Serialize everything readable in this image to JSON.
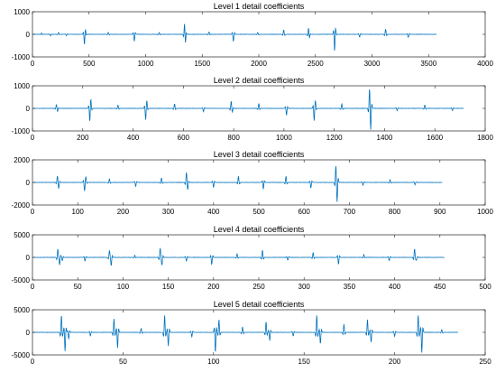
{
  "figure": {
    "background": "#ffffff",
    "line_color": "#0072bd",
    "axis_color": "#262626"
  },
  "chart_data": [
    {
      "type": "line",
      "title": "Level 1 detail coefficients",
      "xlim": [
        0,
        4000
      ],
      "ylim": [
        -1000,
        1000
      ],
      "xticks": [
        0,
        500,
        1000,
        1500,
        2000,
        2500,
        3000,
        3500,
        4000
      ],
      "yticks": [
        -1000,
        0,
        1000
      ],
      "x_end": 3570,
      "spikes": [
        {
          "x": 80,
          "v": 60
        },
        {
          "x": 160,
          "v": -70
        },
        {
          "x": 230,
          "v": 80
        },
        {
          "x": 300,
          "v": -60
        },
        {
          "x": 460,
          "v": -480
        },
        {
          "x": 465,
          "v": 200
        },
        {
          "x": 670,
          "v": 90
        },
        {
          "x": 900,
          "v": -300
        },
        {
          "x": 1120,
          "v": 80
        },
        {
          "x": 1345,
          "v": 500
        },
        {
          "x": 1350,
          "v": -380
        },
        {
          "x": 1560,
          "v": 100
        },
        {
          "x": 1775,
          "v": -320
        },
        {
          "x": 1990,
          "v": 80
        },
        {
          "x": 2220,
          "v": 200
        },
        {
          "x": 2440,
          "v": 300
        },
        {
          "x": 2445,
          "v": -150
        },
        {
          "x": 2670,
          "v": -780
        },
        {
          "x": 2675,
          "v": 200
        },
        {
          "x": 2890,
          "v": -120
        },
        {
          "x": 3120,
          "v": 230
        },
        {
          "x": 3320,
          "v": -130
        }
      ]
    },
    {
      "type": "line",
      "title": "Level 2 detail coefficients",
      "xlim": [
        0,
        1800
      ],
      "ylim": [
        -1000,
        1000
      ],
      "xticks": [
        0,
        200,
        400,
        600,
        800,
        1000,
        1200,
        1400,
        1600,
        1800
      ],
      "yticks": [
        -1000,
        0,
        1000
      ],
      "x_end": 1715,
      "spikes": [
        {
          "x": 95,
          "v": 150
        },
        {
          "x": 100,
          "v": -100
        },
        {
          "x": 228,
          "v": -500
        },
        {
          "x": 232,
          "v": 300
        },
        {
          "x": 340,
          "v": 150
        },
        {
          "x": 450,
          "v": -450
        },
        {
          "x": 455,
          "v": 250
        },
        {
          "x": 565,
          "v": 200
        },
        {
          "x": 680,
          "v": -150
        },
        {
          "x": 790,
          "v": 300
        },
        {
          "x": 795,
          "v": -100
        },
        {
          "x": 900,
          "v": 220
        },
        {
          "x": 1010,
          "v": -300
        },
        {
          "x": 1120,
          "v": -500
        },
        {
          "x": 1125,
          "v": 250
        },
        {
          "x": 1230,
          "v": 200
        },
        {
          "x": 1340,
          "v": 700
        },
        {
          "x": 1345,
          "v": -800
        },
        {
          "x": 1450,
          "v": -100
        },
        {
          "x": 1560,
          "v": 150
        },
        {
          "x": 1670,
          "v": -100
        }
      ]
    },
    {
      "type": "line",
      "title": "Level 3 detail coefficients",
      "xlim": [
        0,
        1000
      ],
      "ylim": [
        -2000,
        2000
      ],
      "xticks": [
        0,
        100,
        200,
        300,
        400,
        500,
        600,
        700,
        800,
        900,
        1000
      ],
      "yticks": [
        -2000,
        0,
        2000
      ],
      "x_end": 905,
      "spikes": [
        {
          "x": 55,
          "v": 500
        },
        {
          "x": 58,
          "v": -450
        },
        {
          "x": 115,
          "v": -700
        },
        {
          "x": 118,
          "v": 400
        },
        {
          "x": 170,
          "v": 300
        },
        {
          "x": 228,
          "v": -350
        },
        {
          "x": 285,
          "v": 400
        },
        {
          "x": 340,
          "v": 800
        },
        {
          "x": 343,
          "v": -500
        },
        {
          "x": 400,
          "v": -450
        },
        {
          "x": 455,
          "v": 550
        },
        {
          "x": 510,
          "v": -600
        },
        {
          "x": 560,
          "v": 550
        },
        {
          "x": 615,
          "v": -500
        },
        {
          "x": 670,
          "v": 1200
        },
        {
          "x": 673,
          "v": -1500
        },
        {
          "x": 730,
          "v": -250
        },
        {
          "x": 790,
          "v": 250
        },
        {
          "x": 845,
          "v": -200
        }
      ]
    },
    {
      "type": "line",
      "title": "Level 4 detail coefficients",
      "xlim": [
        0,
        500
      ],
      "ylim": [
        -5000,
        5000
      ],
      "xticks": [
        0,
        50,
        100,
        150,
        200,
        250,
        300,
        350,
        400,
        450,
        500
      ],
      "yticks": [
        -5000,
        0,
        5000
      ],
      "x_end": 455,
      "spikes": [
        {
          "x": 28,
          "v": 1800
        },
        {
          "x": 30,
          "v": -1600
        },
        {
          "x": 33,
          "v": -700
        },
        {
          "x": 58,
          "v": -800
        },
        {
          "x": 85,
          "v": 1500
        },
        {
          "x": 87,
          "v": -1800
        },
        {
          "x": 113,
          "v": 500
        },
        {
          "x": 141,
          "v": 2000
        },
        {
          "x": 143,
          "v": -1700
        },
        {
          "x": 170,
          "v": -800
        },
        {
          "x": 198,
          "v": -1600
        },
        {
          "x": 226,
          "v": 800
        },
        {
          "x": 254,
          "v": 1600
        },
        {
          "x": 282,
          "v": -600
        },
        {
          "x": 310,
          "v": 1100
        },
        {
          "x": 338,
          "v": -1500
        },
        {
          "x": 366,
          "v": 600
        },
        {
          "x": 394,
          "v": -700
        },
        {
          "x": 422,
          "v": 1900
        },
        {
          "x": 424,
          "v": -600
        }
      ]
    },
    {
      "type": "line",
      "title": "Level 5 detail coefficients",
      "xlim": [
        0,
        250
      ],
      "ylim": [
        -5000,
        5000
      ],
      "xticks": [
        0,
        50,
        100,
        150,
        200,
        250
      ],
      "yticks": [
        -5000,
        0,
        5000
      ],
      "x_end": 235,
      "spikes": [
        {
          "x": 16,
          "v": 3800
        },
        {
          "x": 18,
          "v": -4200
        },
        {
          "x": 20,
          "v": -1500
        },
        {
          "x": 32,
          "v": -800
        },
        {
          "x": 45,
          "v": 3000
        },
        {
          "x": 47,
          "v": -3500
        },
        {
          "x": 60,
          "v": 900
        },
        {
          "x": 73,
          "v": 3800
        },
        {
          "x": 75,
          "v": -3000
        },
        {
          "x": 88,
          "v": -1000
        },
        {
          "x": 101,
          "v": -4500
        },
        {
          "x": 103,
          "v": 2800
        },
        {
          "x": 116,
          "v": 1200
        },
        {
          "x": 129,
          "v": 2400
        },
        {
          "x": 131,
          "v": -1800
        },
        {
          "x": 144,
          "v": -800
        },
        {
          "x": 157,
          "v": 3800
        },
        {
          "x": 159,
          "v": -2600
        },
        {
          "x": 172,
          "v": 1800
        },
        {
          "x": 185,
          "v": 2800
        },
        {
          "x": 187,
          "v": -2200
        },
        {
          "x": 200,
          "v": -900
        },
        {
          "x": 213,
          "v": 3800
        },
        {
          "x": 215,
          "v": -4500
        },
        {
          "x": 226,
          "v": 600
        }
      ]
    }
  ]
}
